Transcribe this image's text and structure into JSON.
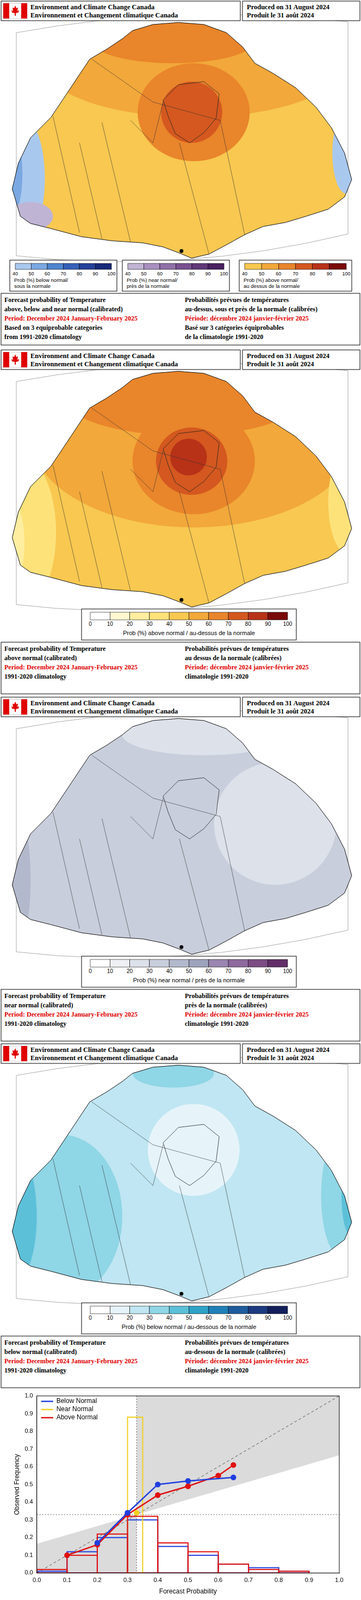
{
  "panels": [
    {
      "header": {
        "agency": [
          "Environment and Climate Change Canada",
          "Environnement et Changement climatique Canada"
        ],
        "produced": [
          "Produced on 31 August 2024",
          "Produit le 31 août 2024"
        ]
      },
      "colorbars": [
        {
          "category": "below",
          "title": [
            "Prob (%) below normal/",
            "sous la normale"
          ],
          "ticks": [
            40,
            50,
            60,
            70,
            80,
            90,
            100
          ],
          "colors": [
            "#a9c8ee",
            "#7aa8e2",
            "#4f84d0",
            "#3460b8",
            "#24409a",
            "#162878"
          ]
        },
        {
          "category": "near",
          "title": [
            "Prob (%) near normal/",
            "près de la normale"
          ],
          "ticks": [
            40,
            50,
            60,
            70,
            80,
            90,
            100
          ],
          "colors": [
            "#c0b4d4",
            "#a890c0",
            "#9070a8",
            "#785090",
            "#603878",
            "#482060"
          ]
        },
        {
          "category": "above",
          "title": [
            "Prob (%) above normal/",
            "au dessus de la normale"
          ],
          "ticks": [
            40,
            50,
            60,
            70,
            80,
            90,
            100
          ],
          "colors": [
            "#f8c850",
            "#f2a83a",
            "#e9852b",
            "#d4581f",
            "#b83218",
            "#7a0a0a"
          ]
        }
      ],
      "regions": [
        {
          "category": "above",
          "value": 40
        },
        {
          "category": "above",
          "value": 50
        },
        {
          "category": "above",
          "value": 60
        },
        {
          "category": "above",
          "value": 60
        },
        {
          "category": "above",
          "value": 70
        },
        {
          "category": "below",
          "value": 40
        },
        {
          "category": "below",
          "value": 50
        },
        {
          "category": "near",
          "value": 40
        },
        {
          "category": "below",
          "value": 40
        }
      ],
      "caption": {
        "en": {
          "title": [
            "Forecast probability of Temperature",
            "above, below and near normal (calibrated)"
          ],
          "period": "Period: December 2024 January-February 2025",
          "note": [
            "Based on 3 equiprobable categories",
            "from 1991-2020 climatology"
          ]
        },
        "fr": {
          "title": [
            "Probabilités prévues de températures",
            "au-dessus, sous et près de la normale (calibrées)"
          ],
          "period": "Période: décembre 2024 janvier-février 2025",
          "note": [
            "Basé sur 3 catégories équiprobables",
            "de la climatologie 1991-2020"
          ]
        }
      }
    },
    {
      "header": {
        "agency": [
          "Environment and Climate Change Canada",
          "Environnement et Changement climatique Canada"
        ],
        "produced": [
          "Produced on 31 August 2024",
          "Produit le 31 août 2024"
        ]
      },
      "colorbars": [
        {
          "category": "above",
          "title": [
            "Prob (%) above normal / au-dessus de la normale"
          ],
          "ticks": [
            0,
            10,
            20,
            30,
            40,
            50,
            60,
            70,
            80,
            90,
            100
          ],
          "colors": [
            "#ffffff",
            "#fff8d0",
            "#ffeea0",
            "#fde27a",
            "#f8c850",
            "#f2a83a",
            "#e9852b",
            "#d4581f",
            "#b83218",
            "#7a0a0a"
          ]
        }
      ],
      "regions": [
        {
          "category": "above",
          "value": 40
        },
        {
          "category": "above",
          "value": 50
        },
        {
          "category": "above",
          "value": 60
        },
        {
          "category": "above",
          "value": 60
        },
        {
          "category": "above",
          "value": 70
        },
        {
          "category": "above",
          "value": 80
        },
        {
          "category": "above",
          "value": 30
        },
        {
          "category": "above",
          "value": 20
        },
        {
          "category": "above",
          "value": 30
        }
      ],
      "caption": {
        "en": {
          "title": [
            "Forecast probability of Temperature",
            "above normal (calibrated)"
          ],
          "period": "Period: December 2024 January-February 2025",
          "note": [
            "1991-2020 climatology"
          ]
        },
        "fr": {
          "title": [
            "Probabilités prévues de températures",
            "au dessus de la normale (calibrées)"
          ],
          "period": "Période: décembre 2024 janvier-février 2025",
          "note": [
            "climatologie 1991-2020"
          ]
        }
      }
    },
    {
      "header": {
        "agency": [
          "Environment and Climate Change Canada",
          "Environnement et Changement climatique Canada"
        ],
        "produced": [
          "Produced on 31 August 2024",
          "Produit le 31 août 2024"
        ]
      },
      "colorbars": [
        {
          "category": "near",
          "title": [
            "Prob (%) near normal / près de la normale"
          ],
          "ticks": [
            0,
            10,
            20,
            30,
            40,
            50,
            60,
            70,
            80,
            90,
            100
          ],
          "colors": [
            "#ffffff",
            "#eef0f4",
            "#dde1ea",
            "#c9cedc",
            "#b3b9cc",
            "#9ea3bd",
            "#9a86b0",
            "#8e6a9e",
            "#7c4c84",
            "#622e68"
          ]
        }
      ],
      "regions": [
        {
          "category": "near",
          "value": 30
        },
        {
          "category": "near",
          "value": 20
        },
        {
          "category": "near",
          "value": 20
        },
        {
          "category": "near",
          "value": 40
        },
        {
          "category": "near",
          "value": 50
        }
      ],
      "caption": {
        "en": {
          "title": [
            "Forecast probability of Temperature",
            "near normal (calibrated)"
          ],
          "period": "Period: December 2024 January-February 2025",
          "note": [
            "1991-2020 climatology"
          ]
        },
        "fr": {
          "title": [
            "Probabilités prévues de températures",
            "près de la normale (calibrées)"
          ],
          "period": "Période: décembre 2024 janvier-février 2025",
          "note": [
            "climatologie 1991-2020"
          ]
        }
      }
    },
    {
      "header": {
        "agency": [
          "Environment and Climate Change Canada",
          "Environnement et Changement climatique Canada"
        ],
        "produced": [
          "Produced on 31 August 2024",
          "Produit le 31 août 2024"
        ]
      },
      "colorbars": [
        {
          "category": "below",
          "title": [
            "Prob (%) below normal / au-dessous de la normale"
          ],
          "ticks": [
            0,
            10,
            20,
            30,
            40,
            50,
            60,
            70,
            80,
            90,
            100
          ],
          "colors": [
            "#ffffff",
            "#e6f4fa",
            "#bfe6f2",
            "#8fd6e6",
            "#5cc0d8",
            "#2fa2c8",
            "#1f80b8",
            "#1e5c9e",
            "#1c3a80",
            "#121f5c"
          ]
        }
      ],
      "regions": [
        {
          "category": "below",
          "value": 20
        },
        {
          "category": "below",
          "value": 30
        },
        {
          "category": "below",
          "value": 40
        },
        {
          "category": "below",
          "value": 30
        },
        {
          "category": "below",
          "value": 30
        },
        {
          "category": "below",
          "value": 40
        },
        {
          "category": "below",
          "value": 10
        }
      ],
      "caption": {
        "en": {
          "title": [
            "Forecast probability of Temperature",
            "below normal (calibrated)"
          ],
          "period": "Period: December 2024 January-February 2025",
          "note": [
            "1991-2020 climatology"
          ]
        },
        "fr": {
          "title": [
            "Probabilités prévues de températures",
            "au-dessous de la normale (calibrées)"
          ],
          "period": "Période: décembre 2024 janvier-février 2025",
          "note": [
            "climatologie 1991-2020"
          ]
        }
      }
    }
  ],
  "chart_data": {
    "type": "line",
    "x_label": "Forecast Probability",
    "y_label": "Observed Frequency",
    "xlim": [
      0,
      1
    ],
    "ylim": [
      0,
      1
    ],
    "xticks": [
      {
        "value": 0,
        "label": "0.0"
      },
      0.1,
      0.2,
      0.3,
      0.4,
      0.5,
      0.6,
      0.7,
      0.8,
      0.9,
      {
        "value": 1,
        "label": "1.0"
      }
    ],
    "yticks": [
      {
        "value": 0,
        "label": "0.0"
      },
      0.1,
      0.2,
      0.3,
      0.4,
      0.5,
      0.6,
      0.7,
      0.8,
      0.9,
      {
        "value": 1,
        "label": "1.0"
      }
    ],
    "grid": false,
    "legend": "upper left",
    "climatology": 0.33,
    "series": [
      {
        "name": "Below Normal",
        "color": "#1f3fe0",
        "marker": "circle",
        "x": [
          0.2,
          0.3,
          0.4,
          0.5,
          0.65
        ],
        "values": [
          0.17,
          0.34,
          0.5,
          0.52,
          0.54
        ],
        "histogram": {
          "bins": [
            0,
            0.1,
            0.2,
            0.3,
            0.4,
            0.5,
            0.6,
            0.7,
            0.8,
            0.9,
            1
          ],
          "counts": [
            0.01,
            0.12,
            0.2,
            0.3,
            0.15,
            0.1,
            0.05,
            0.03,
            0.01,
            0
          ]
        }
      },
      {
        "name": "Near Normal",
        "color": "#f0d020",
        "marker": "circle",
        "x": [
          0.33
        ],
        "values": [
          0.34
        ],
        "histogram": {
          "bins": [
            0.3,
            0.35
          ],
          "counts": [
            0.88
          ]
        }
      },
      {
        "name": "Above Normal",
        "color": "#e01010",
        "marker": "circle",
        "x": [
          0.1,
          0.2,
          0.3,
          0.4,
          0.5,
          0.6,
          0.65
        ],
        "values": [
          0.1,
          0.16,
          0.33,
          0.44,
          0.49,
          0.55,
          0.61
        ],
        "histogram": {
          "bins": [
            0,
            0.1,
            0.2,
            0.3,
            0.4,
            0.5,
            0.6,
            0.7,
            0.8,
            0.9,
            1
          ],
          "counts": [
            0.02,
            0.1,
            0.22,
            0.32,
            0.17,
            0.12,
            0.05,
            0.02,
            0.01,
            0
          ]
        }
      }
    ]
  }
}
